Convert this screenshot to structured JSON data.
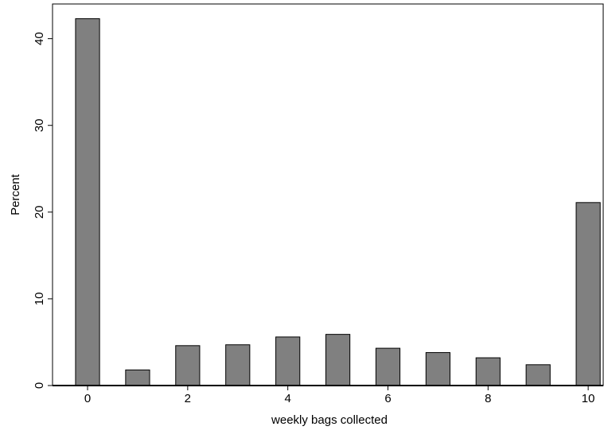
{
  "chart_data": {
    "type": "bar",
    "x": [
      0,
      1,
      2,
      3,
      4,
      5,
      6,
      7,
      8,
      9,
      10
    ],
    "values": [
      42.3,
      1.8,
      4.6,
      4.7,
      5.6,
      5.9,
      4.3,
      3.8,
      3.2,
      2.4,
      21.1
    ],
    "xlabel": "weekly bags collected",
    "ylabel": "Percent",
    "title": "",
    "xlim": [
      -0.7,
      10.3
    ],
    "ylim": [
      0,
      44
    ],
    "xticks": [
      "0",
      "2",
      "4",
      "6",
      "8",
      "10"
    ],
    "yticks": [
      "0",
      "10",
      "20",
      "30",
      "40"
    ],
    "bar_color": "#808080",
    "bar_edge_color": "#000000",
    "grid": false,
    "legend": "none"
  }
}
